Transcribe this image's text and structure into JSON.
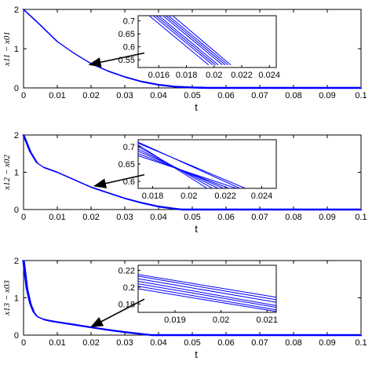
{
  "chart_data": [
    {
      "type": "line",
      "xlabel": "t",
      "ylabel": "x11 − x01",
      "xlim": [
        0,
        0.1
      ],
      "ylim": [
        0,
        2
      ],
      "xticks": [
        "0",
        "0.01",
        "0.02",
        "0.03",
        "0.04",
        "0.05",
        "0.06",
        "0.07",
        "0.08",
        "0.09",
        "0.1"
      ],
      "yticks": [
        "0",
        "1",
        "2"
      ],
      "color": "#0000ff",
      "grid": false,
      "series": [
        {
          "x": [
            0,
            0.005,
            0.01,
            0.015,
            0.02,
            0.025,
            0.03,
            0.035,
            0.04,
            0.045,
            0.05,
            0.055,
            0.1
          ],
          "y": [
            2.0,
            1.6,
            1.18,
            0.88,
            0.62,
            0.43,
            0.28,
            0.16,
            0.08,
            0.03,
            0.01,
            0,
            0
          ]
        }
      ],
      "inset": {
        "xlim": [
          0.0145,
          0.0245
        ],
        "ylim": [
          0.52,
          0.72
        ],
        "xticks": [
          "0.016",
          "0.018",
          "0.02",
          "0.022",
          "0.024"
        ],
        "yticks": [
          "0.55",
          "0.6",
          "0.65",
          "0.7"
        ],
        "lines": [
          {
            "x": [
              0.0153,
              0.0196
            ],
            "y": [
              0.72,
              0.53
            ]
          },
          {
            "x": [
              0.0156,
              0.0199
            ],
            "y": [
              0.72,
              0.53
            ]
          },
          {
            "x": [
              0.0158,
              0.0201
            ],
            "y": [
              0.72,
              0.53
            ]
          },
          {
            "x": [
              0.016,
              0.0203
            ],
            "y": [
              0.72,
              0.53
            ]
          },
          {
            "x": [
              0.0163,
              0.0206
            ],
            "y": [
              0.72,
              0.53
            ]
          },
          {
            "x": [
              0.0165,
              0.0208
            ],
            "y": [
              0.72,
              0.53
            ]
          },
          {
            "x": [
              0.0167,
              0.021
            ],
            "y": [
              0.72,
              0.53
            ]
          },
          {
            "x": [
              0.017,
              0.0212
            ],
            "y": [
              0.72,
              0.53
            ]
          }
        ],
        "arrow_to": {
          "x": 0.019,
          "y": 0.58
        }
      }
    },
    {
      "type": "line",
      "xlabel": "t",
      "ylabel": "x12 − x02",
      "xlim": [
        0,
        0.1
      ],
      "ylim": [
        0,
        2
      ],
      "xticks": [
        "0",
        "0.01",
        "0.02",
        "0.03",
        "0.04",
        "0.05",
        "0.06",
        "0.07",
        "0.08",
        "0.09",
        "0.1"
      ],
      "yticks": [
        "0",
        "1",
        "2"
      ],
      "color": "#0000ff",
      "grid": false,
      "series": [
        {
          "x": [
            0,
            0.002,
            0.004,
            0.006,
            0.01,
            0.015,
            0.02,
            0.025,
            0.03,
            0.035,
            0.04,
            0.045,
            0.047,
            0.1
          ],
          "y": [
            2.0,
            1.55,
            1.25,
            1.13,
            1.0,
            0.8,
            0.6,
            0.45,
            0.3,
            0.18,
            0.08,
            0.02,
            0,
            0
          ]
        }
      ],
      "inset": {
        "xlim": [
          0.0172,
          0.0248
        ],
        "ylim": [
          0.58,
          0.72
        ],
        "xticks": [
          "0.018",
          "0.02",
          "0.022",
          "0.024"
        ],
        "yticks": [
          "0.6",
          "0.65",
          "0.7"
        ],
        "lines": [
          {
            "x": [
              0.0172,
              0.021
            ],
            "y": [
              0.705,
              0.58
            ]
          },
          {
            "x": [
              0.0172,
              0.0213
            ],
            "y": [
              0.7,
              0.58
            ]
          },
          {
            "x": [
              0.0172,
              0.0216
            ],
            "y": [
              0.693,
              0.58
            ]
          },
          {
            "x": [
              0.0172,
              0.0219
            ],
            "y": [
              0.687,
              0.58
            ]
          },
          {
            "x": [
              0.0172,
              0.0222
            ],
            "y": [
              0.68,
              0.58
            ]
          },
          {
            "x": [
              0.0172,
              0.0226
            ],
            "y": [
              0.674,
              0.58
            ]
          },
          {
            "x": [
              0.0172,
              0.0228
            ],
            "y": [
              0.713,
              0.58
            ]
          },
          {
            "x": [
              0.0172,
              0.0231
            ],
            "y": [
              0.71,
              0.58
            ]
          }
        ],
        "arrow_to": {
          "x": 0.0205,
          "y": 0.62
        }
      }
    },
    {
      "type": "line",
      "xlabel": "t",
      "ylabel": "x13 − x03",
      "xlim": [
        0,
        0.1
      ],
      "ylim": [
        0,
        2
      ],
      "xticks": [
        "0",
        "0.01",
        "0.02",
        "0.03",
        "0.04",
        "0.05",
        "0.06",
        "0.07",
        "0.08",
        "0.09",
        "0.1"
      ],
      "yticks": [
        "0",
        "1",
        "2"
      ],
      "color": "#0000ff",
      "grid": false,
      "series": [
        {
          "x": [
            0,
            0.001,
            0.002,
            0.003,
            0.004,
            0.006,
            0.008,
            0.01,
            0.015,
            0.02,
            0.025,
            0.03,
            0.035,
            0.038,
            0.1
          ],
          "y": [
            2.0,
            1.25,
            0.85,
            0.62,
            0.5,
            0.42,
            0.38,
            0.35,
            0.28,
            0.21,
            0.14,
            0.08,
            0.03,
            0,
            0
          ]
        }
      ],
      "inset": {
        "xlim": [
          0.0182,
          0.0212
        ],
        "ylim": [
          0.17,
          0.226
        ],
        "xticks": [
          "0.019",
          "0.02",
          "0.021"
        ],
        "yticks": [
          "0.18",
          "0.2",
          "0.22"
        ],
        "lines": [
          {
            "x": [
              0.0182,
              0.0212
            ],
            "y": [
              0.213,
              0.185
            ]
          },
          {
            "x": [
              0.0182,
              0.0212
            ],
            "y": [
              0.21,
              0.182
            ]
          },
          {
            "x": [
              0.0182,
              0.0212
            ],
            "y": [
              0.207,
              0.178
            ]
          },
          {
            "x": [
              0.0182,
              0.0212
            ],
            "y": [
              0.204,
              0.176
            ]
          },
          {
            "x": [
              0.0182,
              0.0212
            ],
            "y": [
              0.201,
              0.173
            ]
          },
          {
            "x": [
              0.0182,
              0.0212
            ],
            "y": [
              0.215,
              0.188
            ]
          },
          {
            "x": [
              0.0182,
              0.0212
            ],
            "y": [
              0.198,
              0.171
            ]
          }
        ],
        "arrow_to": {
          "x": 0.0195,
          "y": 0.22
        }
      }
    }
  ]
}
